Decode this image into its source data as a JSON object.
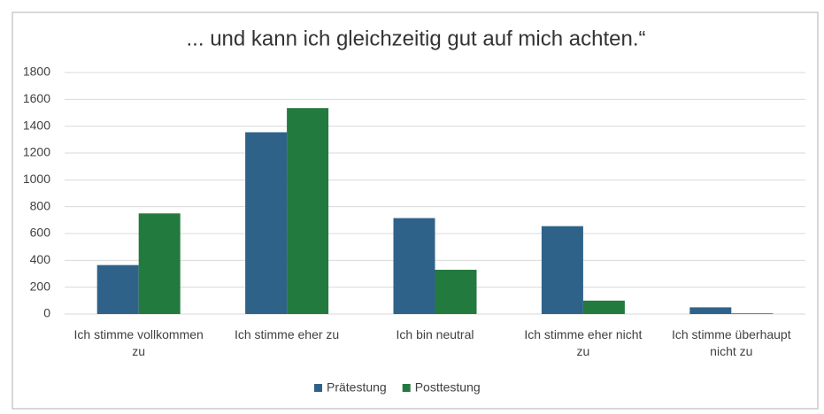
{
  "chart_data": {
    "type": "bar",
    "title": "... und kann ich gleichzeitig gut auf mich achten.“",
    "categories": [
      "Ich stimme vollkommen zu",
      "Ich stimme eher zu",
      "Ich bin neutral",
      "Ich stimme eher nicht zu",
      "Ich stimme überhaupt nicht zu"
    ],
    "series": [
      {
        "name": "Prätestung",
        "color": "#2f6289",
        "values": [
          365,
          1355,
          715,
          655,
          50
        ]
      },
      {
        "name": "Posttestung",
        "color": "#237a3f",
        "values": [
          750,
          1535,
          330,
          100,
          5
        ]
      }
    ],
    "ylim": [
      0,
      1800
    ],
    "yticks": [
      0,
      200,
      400,
      600,
      800,
      1000,
      1200,
      1400,
      1600,
      1800
    ],
    "grid": true,
    "legend": "bottom"
  }
}
